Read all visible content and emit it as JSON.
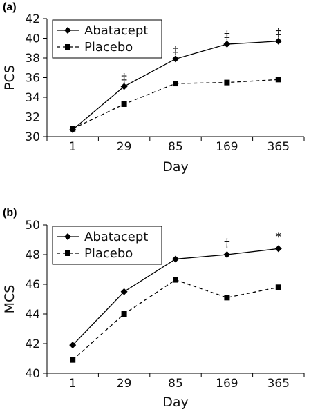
{
  "chart_data": [
    {
      "type": "line",
      "panel_label": "(a)",
      "title": "",
      "xlabel": "Day",
      "ylabel": "PCS",
      "categories": [
        "1",
        "29",
        "85",
        "169",
        "365"
      ],
      "ylim": [
        30,
        42
      ],
      "yticks": [
        "30",
        "32",
        "34",
        "36",
        "38",
        "40",
        "42"
      ],
      "grid": false,
      "legend_position": "top-left",
      "series": [
        {
          "name": "Abatacept",
          "style": "solid",
          "marker": "diamond",
          "color": "#000000",
          "values": [
            30.7,
            35.1,
            37.9,
            39.4,
            39.7
          ]
        },
        {
          "name": "Placebo",
          "style": "dashed",
          "marker": "square",
          "color": "#000000",
          "values": [
            30.8,
            33.3,
            35.4,
            35.5,
            35.8
          ]
        }
      ],
      "annotations": [
        {
          "category": "29",
          "y": 36.0,
          "text": "‡"
        },
        {
          "category": "85",
          "y": 38.8,
          "text": "‡"
        },
        {
          "category": "169",
          "y": 40.3,
          "text": "‡"
        },
        {
          "category": "365",
          "y": 40.6,
          "text": "‡"
        }
      ]
    },
    {
      "type": "line",
      "panel_label": "(b)",
      "title": "",
      "xlabel": "Day",
      "ylabel": "MCS",
      "categories": [
        "1",
        "29",
        "85",
        "169",
        "365"
      ],
      "ylim": [
        40,
        50
      ],
      "yticks": [
        "40",
        "42",
        "44",
        "46",
        "48",
        "50"
      ],
      "grid": false,
      "legend_position": "top-left",
      "series": [
        {
          "name": "Abatacept",
          "style": "solid",
          "marker": "diamond",
          "color": "#000000",
          "values": [
            41.9,
            45.5,
            47.7,
            48.0,
            48.4
          ]
        },
        {
          "name": "Placebo",
          "style": "dashed",
          "marker": "square",
          "color": "#000000",
          "values": [
            40.9,
            44.0,
            46.3,
            45.1,
            45.8
          ]
        }
      ],
      "annotations": [
        {
          "category": "169",
          "y": 48.8,
          "text": "†"
        },
        {
          "category": "365",
          "y": 49.2,
          "text": "*"
        }
      ]
    }
  ]
}
